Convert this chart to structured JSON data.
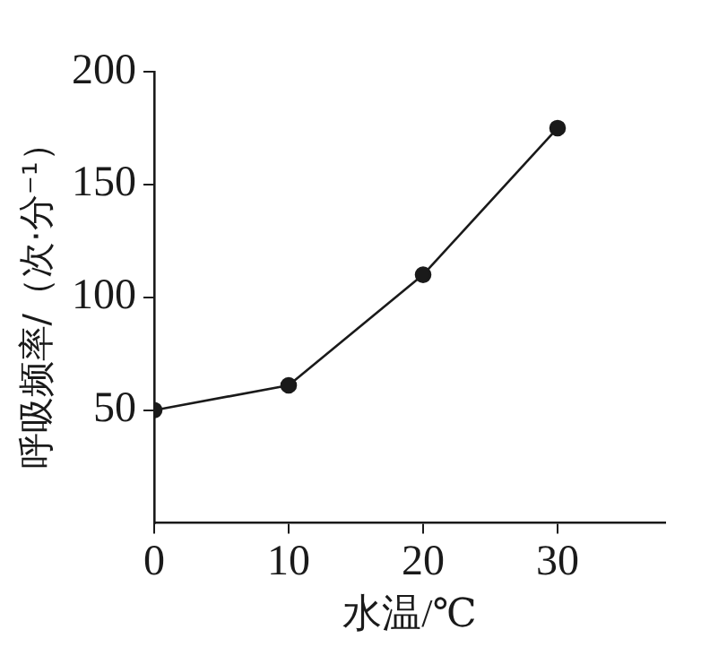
{
  "chart_data": {
    "type": "line",
    "xlabel": "水温/℃",
    "ylabel": "呼吸频率/（次·分⁻¹）",
    "x": [
      0,
      10,
      20,
      30
    ],
    "series": [
      {
        "color": "#1a1a1a",
        "values": [
          50,
          61,
          110,
          175
        ]
      }
    ],
    "xlim": [
      0,
      38
    ],
    "xticks": [
      0,
      10,
      20,
      30
    ],
    "ylim": [
      0,
      200
    ],
    "yticks": [
      50,
      100,
      150,
      200
    ],
    "grid": false,
    "legend": false,
    "marker": "circle",
    "line_style": "solid"
  }
}
